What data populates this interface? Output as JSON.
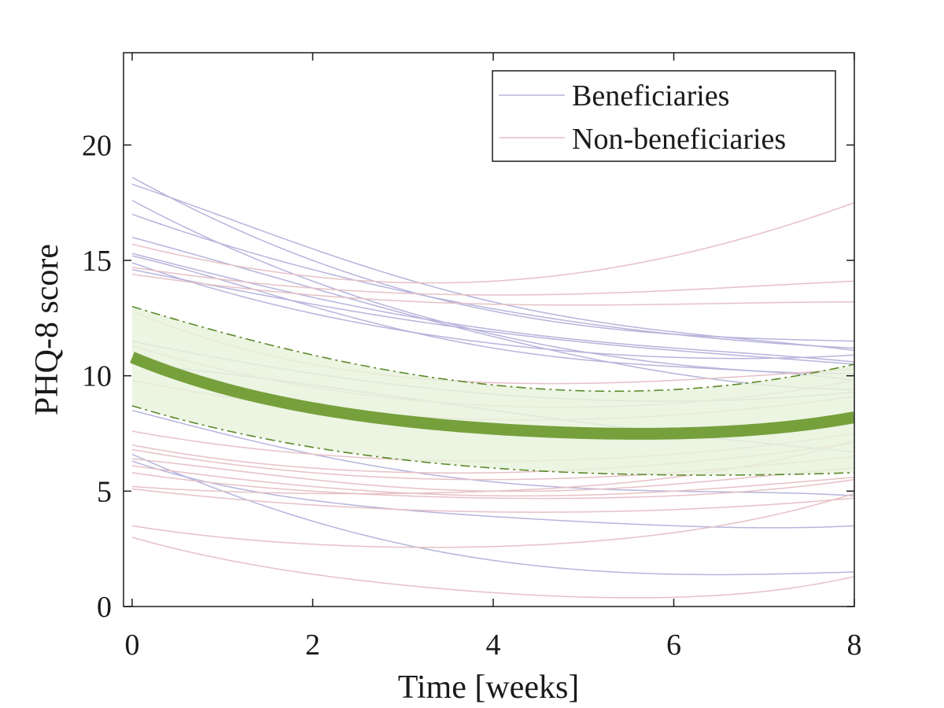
{
  "chart_data": {
    "type": "line",
    "xlabel": "Time [weeks]",
    "ylabel": "PHQ-8 score",
    "xlim": [
      0,
      8
    ],
    "ylim": [
      0,
      24
    ],
    "xticks": [
      0,
      2,
      4,
      6,
      8
    ],
    "yticks": [
      0,
      5,
      10,
      15,
      20
    ],
    "grid": false,
    "legend": {
      "position": "top-right",
      "entries": [
        {
          "label": "Beneficiaries",
          "color": "#b7b4dc"
        },
        {
          "label": "Non-beneficiaries",
          "color": "#e6c1c6"
        }
      ]
    },
    "colors": {
      "beneficiaries": "#b7b4dc",
      "non_beneficiaries": "#e6c1c6",
      "mean": "#76a03c",
      "band_fill": "#e8f1dc",
      "band_edge": "#5a8a2a"
    },
    "sample_x": [
      0,
      2,
      4,
      6,
      8
    ],
    "mean_curve": [
      10.8,
      8.6,
      7.7,
      7.5,
      8.2
    ],
    "ci_upper": [
      13.0,
      10.9,
      9.6,
      9.4,
      10.5
    ],
    "ci_lower": [
      8.7,
      6.9,
      6.0,
      5.7,
      5.8
    ],
    "series": [
      {
        "group": "beneficiaries",
        "values": [
          18.6,
          15.0,
          12.8,
          11.8,
          11.5
        ]
      },
      {
        "group": "beneficiaries",
        "values": [
          18.3,
          15.5,
          13.2,
          11.9,
          11.1
        ]
      },
      {
        "group": "beneficiaries",
        "values": [
          17.6,
          14.1,
          11.8,
          10.5,
          10.1
        ]
      },
      {
        "group": "beneficiaries",
        "values": [
          17.0,
          14.6,
          12.9,
          11.8,
          11.2
        ]
      },
      {
        "group": "beneficiaries",
        "values": [
          16.0,
          13.8,
          11.7,
          10.1,
          9.4
        ]
      },
      {
        "group": "beneficiaries",
        "values": [
          15.3,
          13.4,
          12.0,
          11.2,
          10.6
        ]
      },
      {
        "group": "beneficiaries",
        "values": [
          15.2,
          13.0,
          11.2,
          10.4,
          9.8
        ]
      },
      {
        "group": "beneficiaries",
        "values": [
          14.9,
          12.7,
          11.4,
          10.8,
          10.9
        ]
      },
      {
        "group": "beneficiaries",
        "values": [
          14.6,
          13.1,
          11.9,
          11.1,
          10.5
        ]
      },
      {
        "group": "beneficiaries",
        "values": [
          11.5,
          10.1,
          9.2,
          8.9,
          9.3
        ]
      },
      {
        "group": "beneficiaries",
        "values": [
          10.5,
          9.6,
          8.5,
          7.5,
          6.7
        ]
      },
      {
        "group": "beneficiaries",
        "values": [
          8.5,
          6.6,
          5.4,
          5.0,
          4.8
        ]
      },
      {
        "group": "beneficiaries",
        "values": [
          6.6,
          3.7,
          2.0,
          1.4,
          1.5
        ]
      },
      {
        "group": "beneficiaries",
        "values": [
          6.3,
          4.6,
          3.9,
          3.5,
          3.5
        ]
      },
      {
        "group": "non_beneficiaries",
        "values": [
          15.7,
          14.3,
          14.1,
          15.2,
          17.5
        ]
      },
      {
        "group": "non_beneficiaries",
        "values": [
          14.7,
          13.8,
          13.5,
          13.7,
          14.1
        ]
      },
      {
        "group": "non_beneficiaries",
        "values": [
          14.4,
          13.5,
          13.1,
          13.1,
          13.2
        ]
      },
      {
        "group": "non_beneficiaries",
        "values": [
          12.8,
          10.5,
          9.7,
          9.8,
          10.3
        ]
      },
      {
        "group": "non_beneficiaries",
        "values": [
          11.3,
          9.5,
          8.7,
          8.8,
          9.8
        ]
      },
      {
        "group": "non_beneficiaries",
        "values": [
          9.8,
          8.6,
          8.1,
          8.3,
          9.1
        ]
      },
      {
        "group": "non_beneficiaries",
        "values": [
          7.6,
          6.6,
          6.3,
          6.6,
          7.5
        ]
      },
      {
        "group": "non_beneficiaries",
        "values": [
          7.0,
          6.0,
          5.8,
          6.2,
          7.1
        ]
      },
      {
        "group": "non_beneficiaries",
        "values": [
          6.8,
          5.8,
          5.5,
          5.8,
          6.5
        ]
      },
      {
        "group": "non_beneficiaries",
        "values": [
          6.4,
          5.5,
          5.0,
          5.3,
          6.0
        ]
      },
      {
        "group": "non_beneficiaries",
        "values": [
          6.1,
          5.2,
          4.8,
          5.0,
          5.6
        ]
      },
      {
        "group": "non_beneficiaries",
        "values": [
          5.8,
          5.0,
          4.7,
          4.8,
          5.5
        ]
      },
      {
        "group": "non_beneficiaries",
        "values": [
          5.2,
          4.9,
          5.0,
          5.6,
          7.2
        ]
      },
      {
        "group": "non_beneficiaries",
        "values": [
          5.1,
          4.4,
          4.1,
          4.2,
          4.7
        ]
      },
      {
        "group": "non_beneficiaries",
        "values": [
          3.5,
          2.7,
          2.6,
          3.2,
          4.9
        ]
      },
      {
        "group": "non_beneficiaries",
        "values": [
          3.0,
          1.4,
          0.6,
          0.4,
          1.3
        ]
      }
    ]
  }
}
